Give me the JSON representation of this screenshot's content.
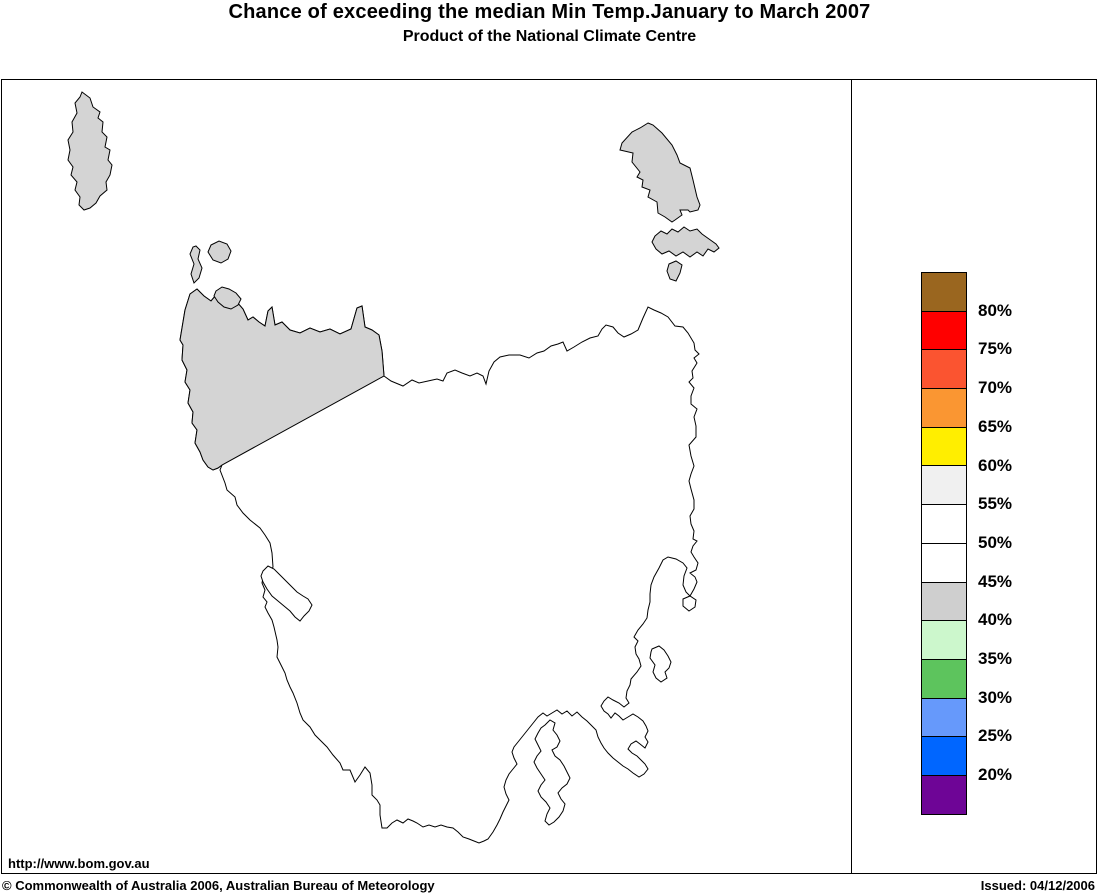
{
  "header": {
    "title": "Chance of exceeding the median Min Temp.January to March 2007",
    "subtitle": "Product of the National Climate Centre"
  },
  "legend": {
    "stops": [
      {
        "color": "#9A661F",
        "label": "80%"
      },
      {
        "color": "#FF0000",
        "label": "75%"
      },
      {
        "color": "#FB5430",
        "label": "70%"
      },
      {
        "color": "#FA9632",
        "label": "65%"
      },
      {
        "color": "#FFEE00",
        "label": "60%"
      },
      {
        "color": "#F0F0F0",
        "label": "55%"
      },
      {
        "color": "#FFFFFF",
        "label": "50%"
      },
      {
        "color": "#FFFFFF",
        "label": "45%"
      },
      {
        "color": "#CFCFCF",
        "label": "40%"
      },
      {
        "color": "#CCF7CC",
        "label": "35%"
      },
      {
        "color": "#5DC45D",
        "label": "30%"
      },
      {
        "color": "#6699FB",
        "label": "25%"
      },
      {
        "color": "#0066FF",
        "label": "20%"
      },
      {
        "color": "#6E0596",
        "label": ""
      }
    ]
  },
  "map": {
    "colors": {
      "outline": "#000000",
      "land": "#FFFFFF",
      "band_40_45": "#D4D4D4"
    }
  },
  "footer": {
    "url": "http://www.bom.gov.au",
    "copyright": "© Commonwealth of Australia 2006, Australian Bureau of Meteorology",
    "issued": "Issued: 04/12/2006"
  }
}
